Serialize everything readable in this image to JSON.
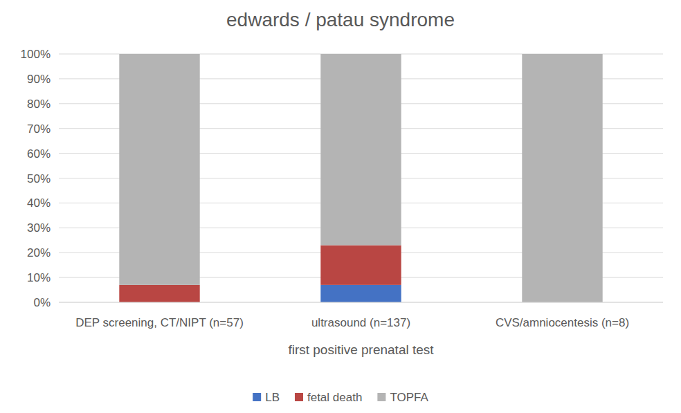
{
  "chart_data": {
    "type": "bar",
    "title": "edwards / patau syndrome",
    "x_label": "first positive prenatal test",
    "categories": [
      "DEP screening, CT/NIPT (n=57)",
      "ultrasound (n=137)",
      "CVS/amniocentesis (n=8)"
    ],
    "series": [
      {
        "name": "LB",
        "color": "#4472c4",
        "values": [
          0,
          7,
          0
        ]
      },
      {
        "name": "fetal death",
        "color": "#b94643",
        "values": [
          7,
          16,
          0
        ]
      },
      {
        "name": "TOPFA",
        "color": "#b4b4b4",
        "values": [
          93,
          77,
          100
        ]
      }
    ],
    "stacked": true,
    "ylim": [
      0,
      100
    ],
    "yticks": [
      {
        "value": 0,
        "label": "0%"
      },
      {
        "value": 10,
        "label": "10%"
      },
      {
        "value": 20,
        "label": "20%"
      },
      {
        "value": 30,
        "label": "30%"
      },
      {
        "value": 40,
        "label": "40%"
      },
      {
        "value": 50,
        "label": "50%"
      },
      {
        "value": 60,
        "label": "60%"
      },
      {
        "value": 70,
        "label": "70%"
      },
      {
        "value": 80,
        "label": "80%"
      },
      {
        "value": 90,
        "label": "90%"
      },
      {
        "value": 100,
        "label": "100%"
      }
    ],
    "grid": true,
    "legend": "bottom"
  }
}
